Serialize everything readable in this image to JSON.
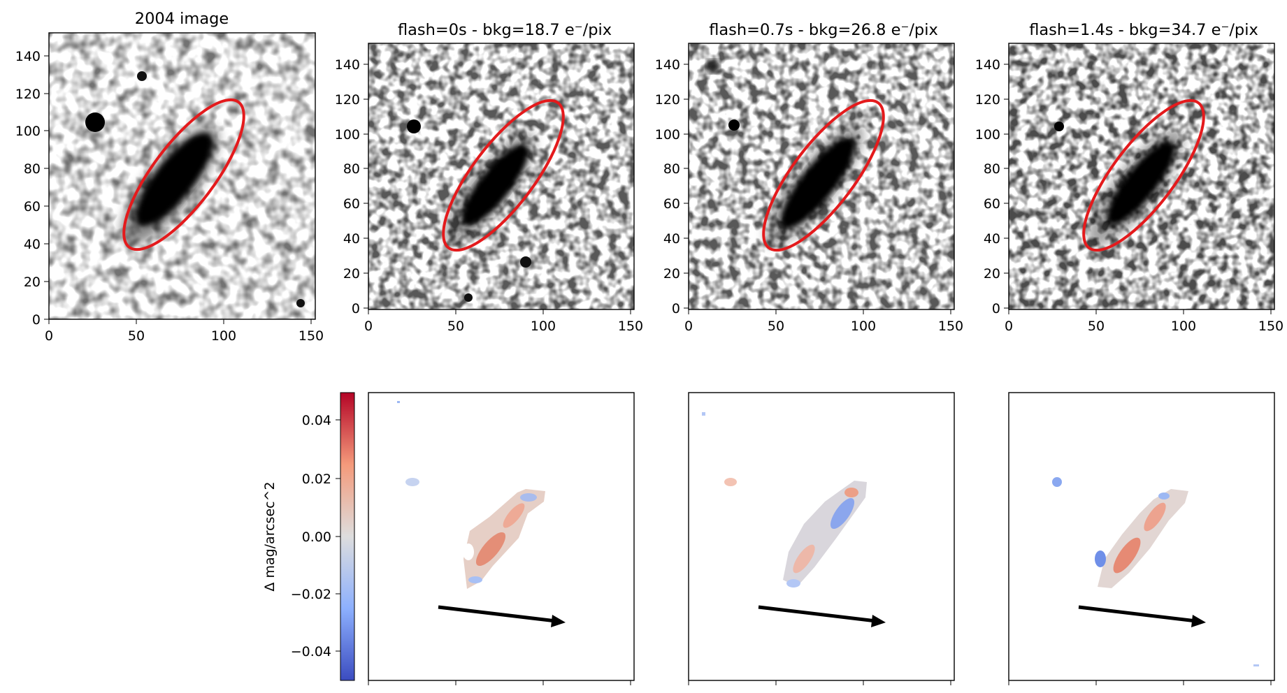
{
  "chart_data": [
    {
      "type": "heatmap",
      "title": "2004 image",
      "colormap": "grey",
      "xlim": [
        0,
        152
      ],
      "ylim": [
        0,
        152
      ],
      "xticks": [
        0,
        50,
        100,
        150
      ],
      "yticks": [
        0,
        20,
        40,
        60,
        80,
        100,
        120,
        140
      ],
      "aperture_ellipse": {
        "color": "#e41a1c"
      }
    },
    {
      "type": "heatmap",
      "title": "flash=0s - bkg=18.7 e⁻/pix",
      "colormap": "grey",
      "xlim": [
        0,
        152
      ],
      "ylim": [
        0,
        152
      ],
      "xticks": [
        0,
        50,
        100,
        150
      ],
      "yticks": [
        0,
        20,
        40,
        60,
        80,
        100,
        120,
        140
      ],
      "aperture_ellipse": {
        "color": "#e41a1c"
      }
    },
    {
      "type": "heatmap",
      "title": "flash=0.7s - bkg=26.8 e⁻/pix",
      "colormap": "grey",
      "xlim": [
        0,
        152
      ],
      "ylim": [
        0,
        152
      ],
      "xticks": [
        0,
        50,
        100,
        150
      ],
      "yticks": [
        0,
        20,
        40,
        60,
        80,
        100,
        120,
        140
      ],
      "aperture_ellipse": {
        "color": "#e41a1c"
      }
    },
    {
      "type": "heatmap",
      "title": "flash=1.4s - bkg=34.7 e⁻/pix",
      "colormap": "grey",
      "xlim": [
        0,
        152
      ],
      "ylim": [
        0,
        152
      ],
      "xticks": [
        0,
        50,
        100,
        150
      ],
      "yticks": [
        0,
        20,
        40,
        60,
        80,
        100,
        120,
        140
      ],
      "aperture_ellipse": {
        "color": "#e41a1c"
      }
    },
    {
      "type": "heatmap",
      "title": "",
      "colormap": "coolwarm",
      "note": "difference map for flash=0s",
      "arrow": true
    },
    {
      "type": "heatmap",
      "title": "",
      "colormap": "coolwarm",
      "note": "difference map for flash=0.7s",
      "arrow": true
    },
    {
      "type": "heatmap",
      "title": "",
      "colormap": "coolwarm",
      "note": "difference map for flash=1.4s",
      "arrow": true
    }
  ],
  "colorbar": {
    "label": "Δ mag/arcsec^2",
    "range": [
      -0.05,
      0.05
    ],
    "ticks": [
      -0.04,
      -0.02,
      0.0,
      0.02,
      0.04
    ],
    "tick_labels": [
      "−0.04",
      "−0.02",
      "0.00",
      "0.02",
      "0.04"
    ],
    "colormap": "coolwarm",
    "low_color": "#3b4cc0",
    "mid_color": "#dddddd",
    "high_color": "#b40426"
  },
  "colors": {
    "ellipse": "#e41a1c",
    "arrow": "#000000"
  }
}
